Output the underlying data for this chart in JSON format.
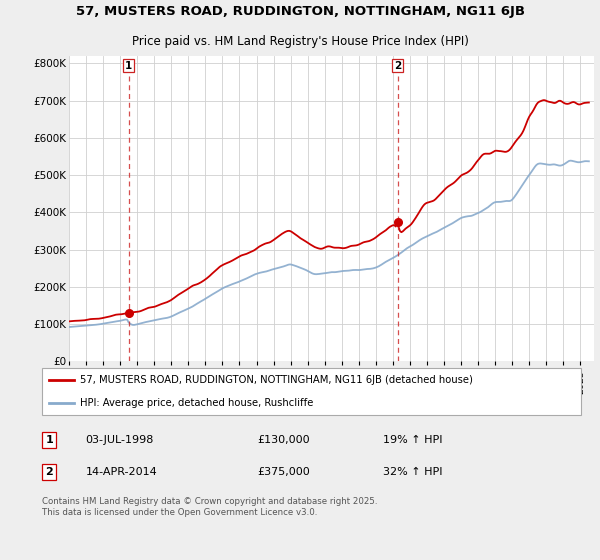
{
  "title_line1": "57, MUSTERS ROAD, RUDDINGTON, NOTTINGHAM, NG11 6JB",
  "title_line2": "Price paid vs. HM Land Registry's House Price Index (HPI)",
  "background_color": "#eeeeee",
  "plot_bg_color": "#ffffff",
  "red_color": "#cc0000",
  "blue_color": "#88aacc",
  "ylim": [
    0,
    820000
  ],
  "yticks": [
    0,
    100000,
    200000,
    300000,
    400000,
    500000,
    600000,
    700000,
    800000
  ],
  "ytick_labels": [
    "£0",
    "£100K",
    "£200K",
    "£300K",
    "£400K",
    "£500K",
    "£600K",
    "£700K",
    "£800K"
  ],
  "xmin": 1995.0,
  "xmax": 2025.8,
  "purchase1_year": 1998.5,
  "purchase1_price": 130000,
  "purchase2_year": 2014.28,
  "purchase2_price": 375000,
  "legend_line1": "57, MUSTERS ROAD, RUDDINGTON, NOTTINGHAM, NG11 6JB (detached house)",
  "legend_line2": "HPI: Average price, detached house, Rushcliffe",
  "annotation1_date": "03-JUL-1998",
  "annotation1_price": "£130,000",
  "annotation1_hpi": "19% ↑ HPI",
  "annotation2_date": "14-APR-2014",
  "annotation2_price": "£375,000",
  "annotation2_hpi": "32% ↑ HPI",
  "footer": "Contains HM Land Registry data © Crown copyright and database right 2025.\nThis data is licensed under the Open Government Licence v3.0."
}
